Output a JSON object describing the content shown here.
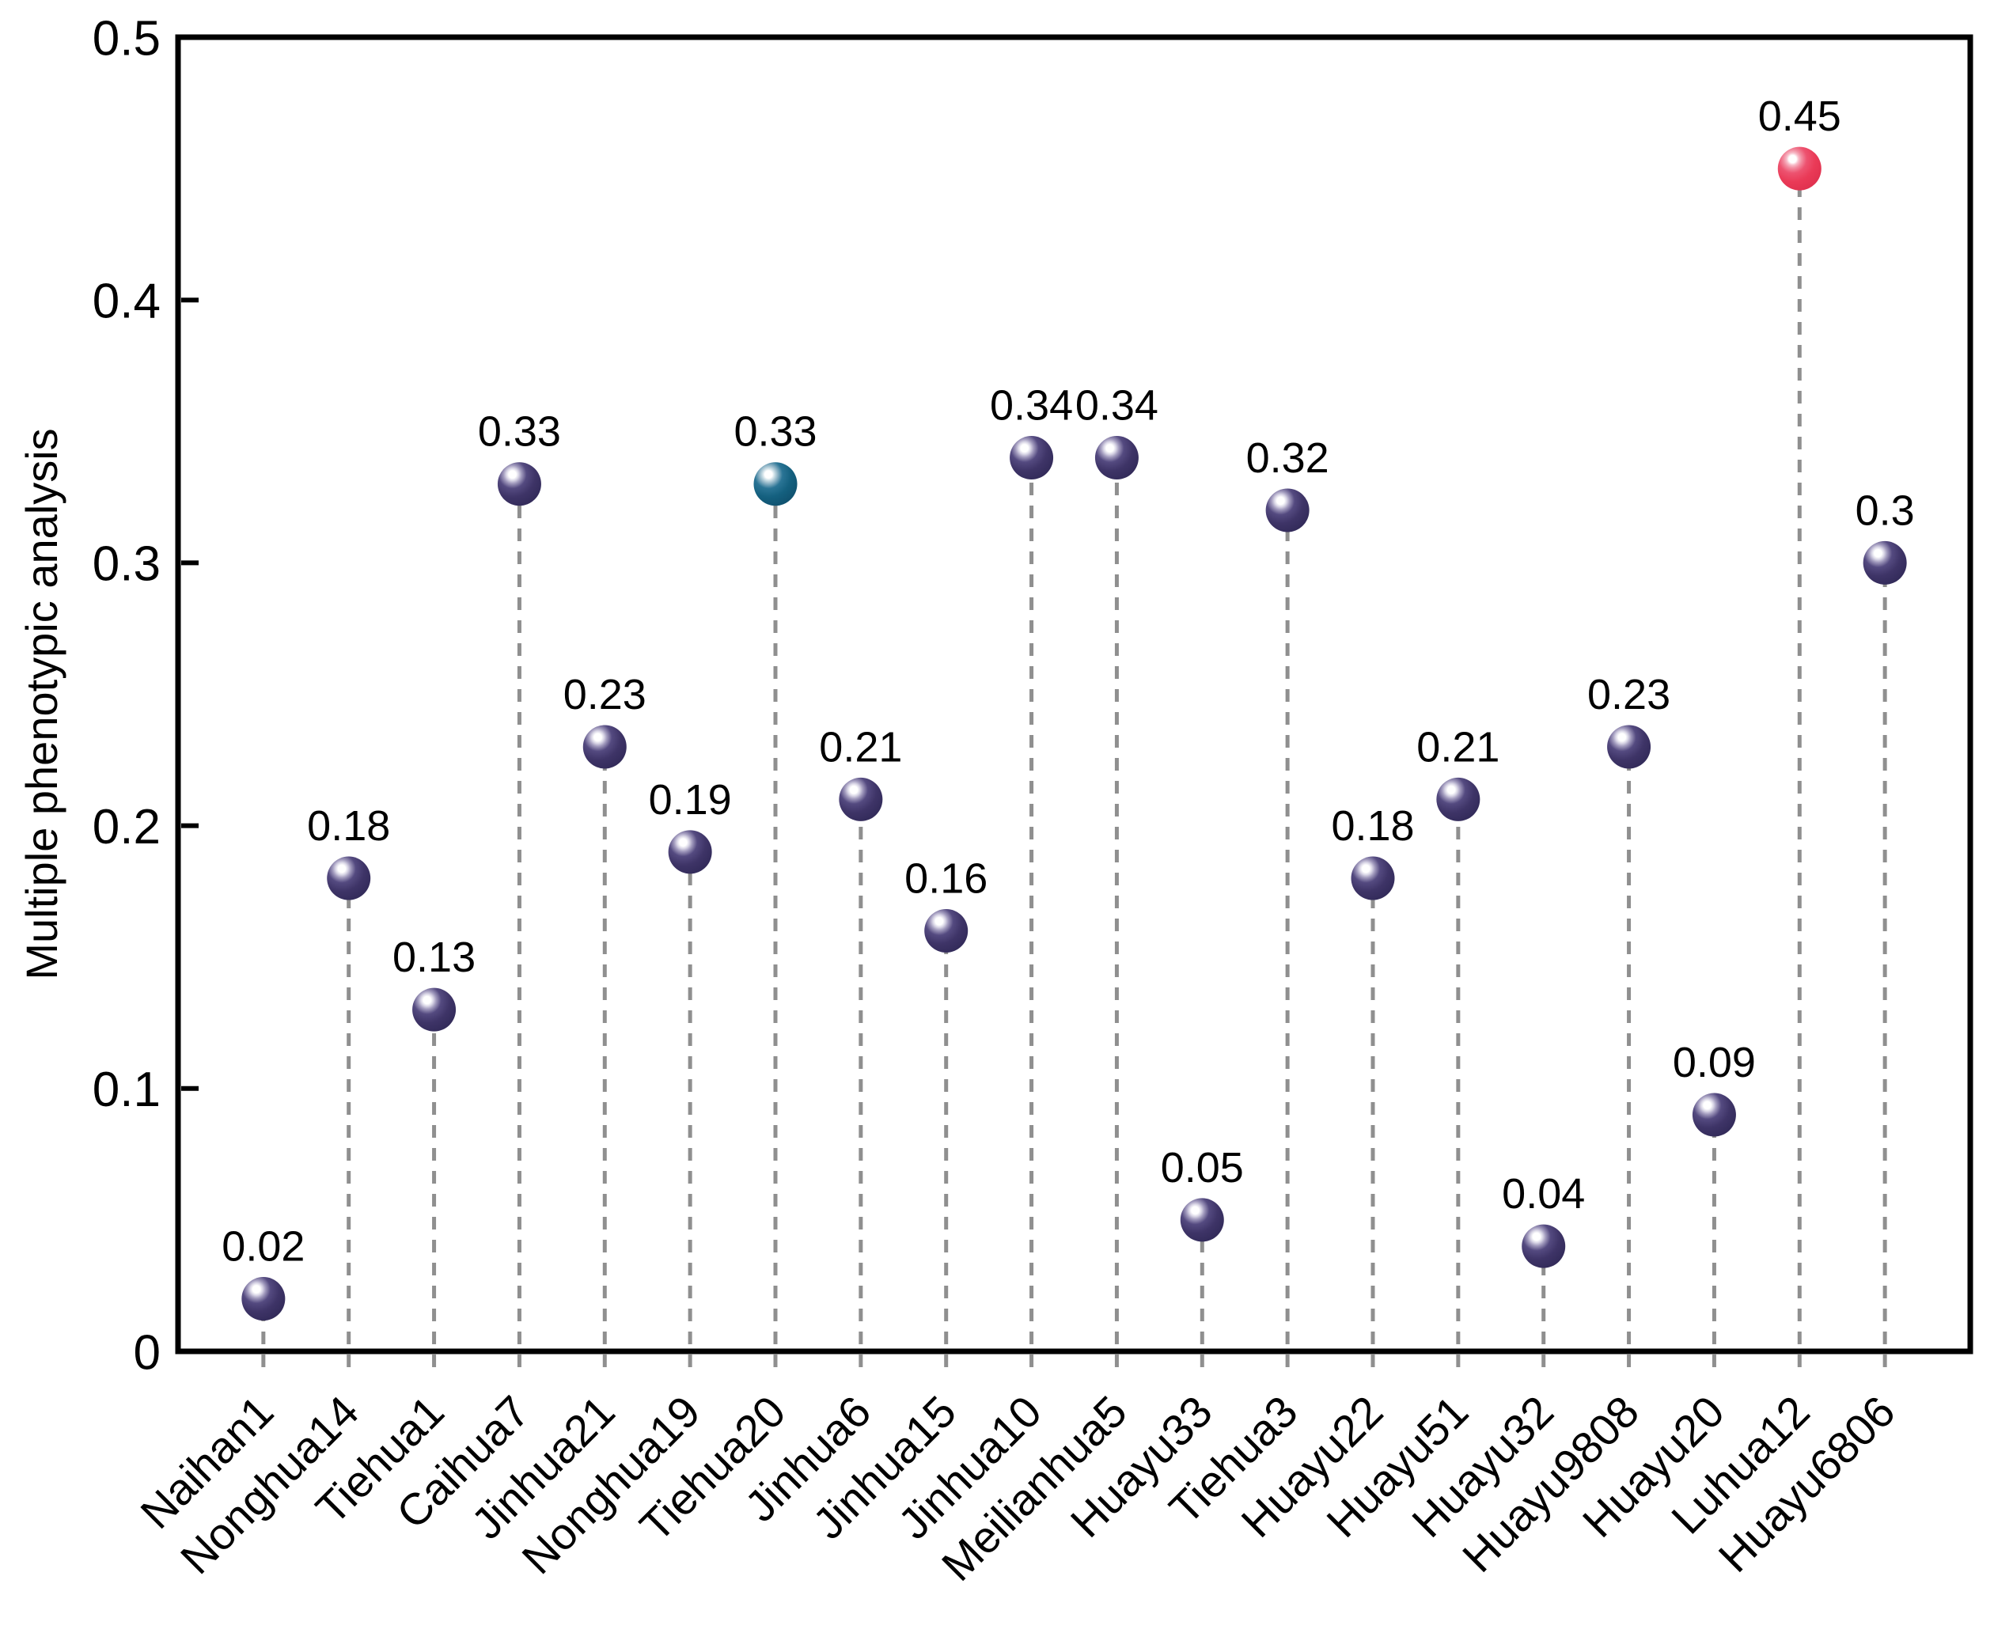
{
  "chart_data": {
    "type": "lollipop",
    "title": "",
    "ylabel": "Multiple phenotypic analysis",
    "xlabel": "",
    "ylim": [
      0,
      0.5
    ],
    "yticks": [
      0,
      0.1,
      0.2,
      0.3,
      0.4,
      0.5
    ],
    "ytick_labels": [
      "0",
      "0.1",
      "0.2",
      "0.3",
      "0.4",
      "0.5"
    ],
    "grid": "off",
    "legend": "none",
    "categories": [
      "Naihan1",
      "Nonghua14",
      "Tiehua1",
      "Caihua7",
      "Jinhua21",
      "Nonghua19",
      "Tiehua20",
      "Jinhua6",
      "Jinhua15",
      "Jinhua10",
      "Meilianhua5",
      "Huayu33",
      "Tiehua3",
      "Huayu22",
      "Huayu51",
      "Huayu32",
      "Huayu9808",
      "Huayu20",
      "Luhua12",
      "Huayu6806"
    ],
    "values": [
      0.02,
      0.18,
      0.13,
      0.33,
      0.23,
      0.19,
      0.33,
      0.21,
      0.16,
      0.34,
      0.34,
      0.05,
      0.32,
      0.18,
      0.21,
      0.04,
      0.23,
      0.09,
      0.45,
      0.3
    ],
    "value_labels": [
      "0.02",
      "0.18",
      "0.13",
      "0.33",
      "0.23",
      "0.19",
      "0.33",
      "0.21",
      "0.16",
      "0.34",
      "0.34",
      "0.05",
      "0.32",
      "0.18",
      "0.21",
      "0.04",
      "0.23",
      "0.09",
      "0.45",
      "0.3"
    ],
    "point_styles": [
      "purple",
      "purple",
      "purple",
      "purple",
      "purple",
      "purple",
      "teal",
      "purple",
      "purple",
      "purple",
      "purple",
      "purple",
      "purple",
      "purple",
      "purple",
      "purple",
      "purple",
      "purple",
      "red",
      "purple"
    ],
    "colors": {
      "purple": "#3A3162",
      "teal": "#14607F",
      "red": "#EA3A57",
      "stem": "#8F8F8F",
      "axis": "#000000"
    }
  }
}
